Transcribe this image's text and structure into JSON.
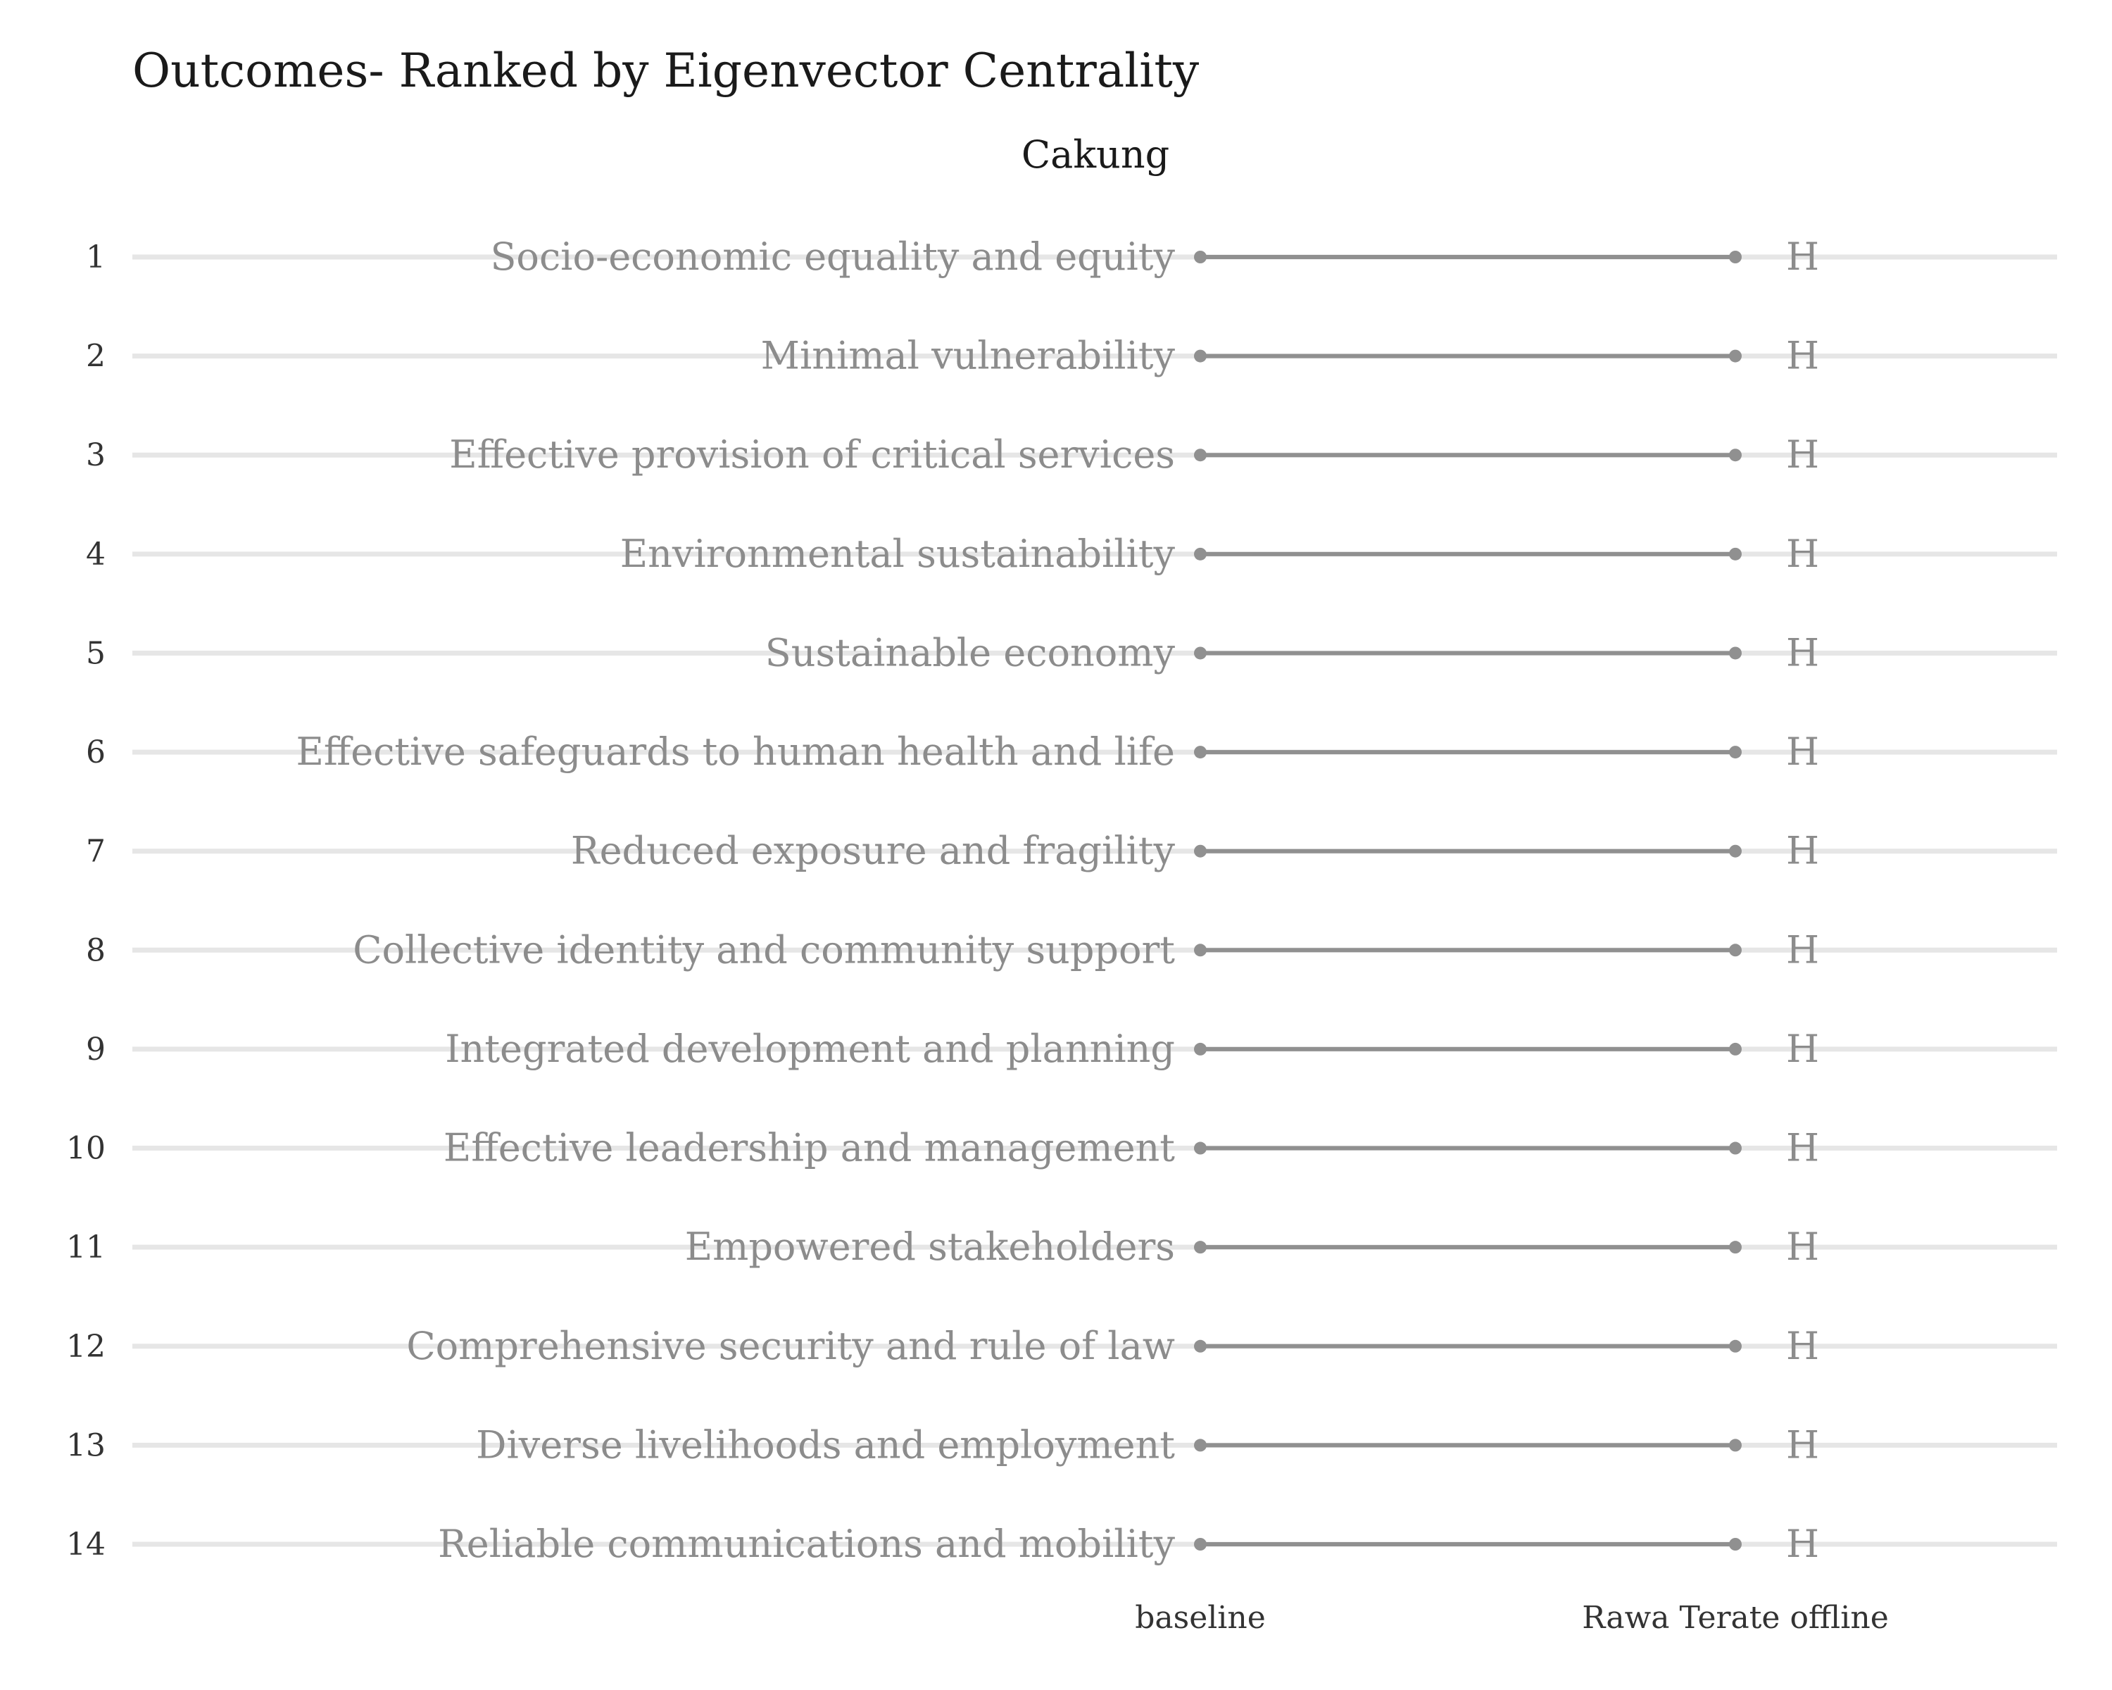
{
  "chart_data": {
    "type": "slope",
    "title": "Outcomes- Ranked by Eigenvector Centrality",
    "subtitle": "Cakung",
    "x": [
      "baseline",
      "Rawa Terate offline"
    ],
    "ranks": [
      1,
      2,
      3,
      4,
      5,
      6,
      7,
      8,
      9,
      10,
      11,
      12,
      13,
      14
    ],
    "series": [
      {
        "name": "Socio-economic equality and equity",
        "values": [
          1,
          1
        ],
        "end_label": "H"
      },
      {
        "name": "Minimal vulnerability",
        "values": [
          2,
          2
        ],
        "end_label": "H"
      },
      {
        "name": "Effective provision of critical services",
        "values": [
          3,
          3
        ],
        "end_label": "H"
      },
      {
        "name": "Environmental sustainability",
        "values": [
          4,
          4
        ],
        "end_label": "H"
      },
      {
        "name": "Sustainable economy",
        "values": [
          5,
          5
        ],
        "end_label": "H"
      },
      {
        "name": "Effective safeguards to human health and life",
        "values": [
          6,
          6
        ],
        "end_label": "H"
      },
      {
        "name": "Reduced exposure and fragility",
        "values": [
          7,
          7
        ],
        "end_label": "H"
      },
      {
        "name": "Collective identity and community support",
        "values": [
          8,
          8
        ],
        "end_label": "H"
      },
      {
        "name": "Integrated development and planning",
        "values": [
          9,
          9
        ],
        "end_label": "H"
      },
      {
        "name": "Effective leadership and management",
        "values": [
          10,
          10
        ],
        "end_label": "H"
      },
      {
        "name": "Empowered stakeholders",
        "values": [
          11,
          11
        ],
        "end_label": "H"
      },
      {
        "name": "Comprehensive security and rule of law",
        "values": [
          12,
          12
        ],
        "end_label": "H"
      },
      {
        "name": "Diverse livelihoods and employment",
        "values": [
          13,
          13
        ],
        "end_label": "H"
      },
      {
        "name": "Reliable communications and mobility",
        "values": [
          14,
          14
        ],
        "end_label": "H"
      }
    ],
    "ylim": [
      1,
      14
    ],
    "y_reversed": true,
    "grid": true,
    "legend": "none",
    "colors": {
      "line": "#909090",
      "grid": "#e6e6e6",
      "label": "#8c8c8c",
      "text": "#1a1a1a"
    }
  }
}
